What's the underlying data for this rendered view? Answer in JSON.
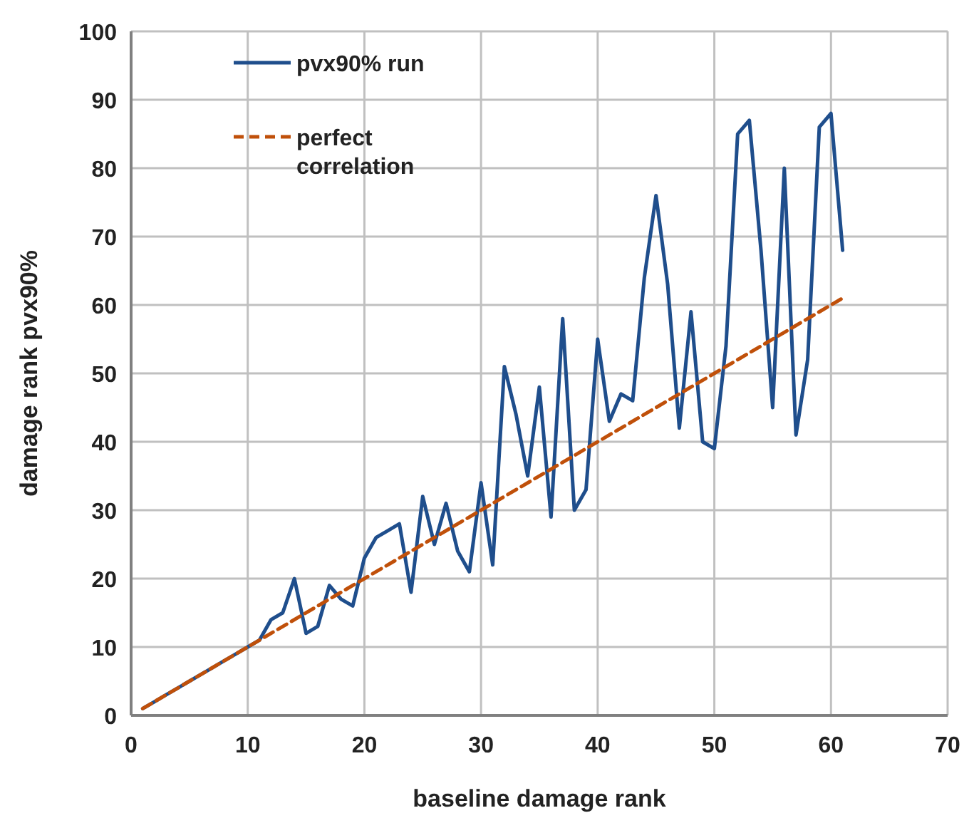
{
  "chart_data": {
    "type": "line",
    "xlabel": "baseline damage rank",
    "ylabel": "damage rank pvx90%",
    "xlim": [
      0,
      70
    ],
    "ylim": [
      0,
      100
    ],
    "xticks": [
      0,
      10,
      20,
      30,
      40,
      50,
      60,
      70
    ],
    "yticks": [
      0,
      10,
      20,
      30,
      40,
      50,
      60,
      70,
      80,
      90,
      100
    ],
    "grid": true,
    "legend": "top left",
    "series": [
      {
        "name": "pvx90% run",
        "color": "#1f4e8c",
        "line_style": "solid",
        "x": [
          1,
          2,
          3,
          4,
          5,
          6,
          7,
          8,
          9,
          10,
          11,
          12,
          13,
          14,
          15,
          16,
          17,
          18,
          19,
          20,
          21,
          22,
          23,
          24,
          25,
          26,
          27,
          28,
          29,
          30,
          31,
          32,
          33,
          34,
          35,
          36,
          37,
          38,
          39,
          40,
          41,
          42,
          43,
          44,
          45,
          46,
          47,
          48,
          49,
          50,
          51,
          52,
          53,
          54,
          55,
          56,
          57,
          58,
          59,
          60,
          61
        ],
        "values": [
          1,
          2,
          3,
          4,
          5,
          6,
          7,
          8,
          9,
          10,
          11,
          14,
          15,
          20,
          12,
          13,
          19,
          17,
          16,
          23,
          26,
          27,
          28,
          18,
          32,
          25,
          31,
          24,
          21,
          34,
          22,
          51,
          44,
          35,
          48,
          29,
          58,
          30,
          33,
          55,
          43,
          47,
          46,
          64,
          76,
          63,
          42,
          59,
          40,
          39,
          54,
          85,
          87,
          68,
          45,
          80,
          41,
          52,
          86,
          88,
          68
        ]
      },
      {
        "name": "perfect correlation",
        "color": "#c0500a",
        "line_style": "dashed",
        "x": [
          1,
          61
        ],
        "values": [
          1,
          61
        ]
      }
    ]
  }
}
